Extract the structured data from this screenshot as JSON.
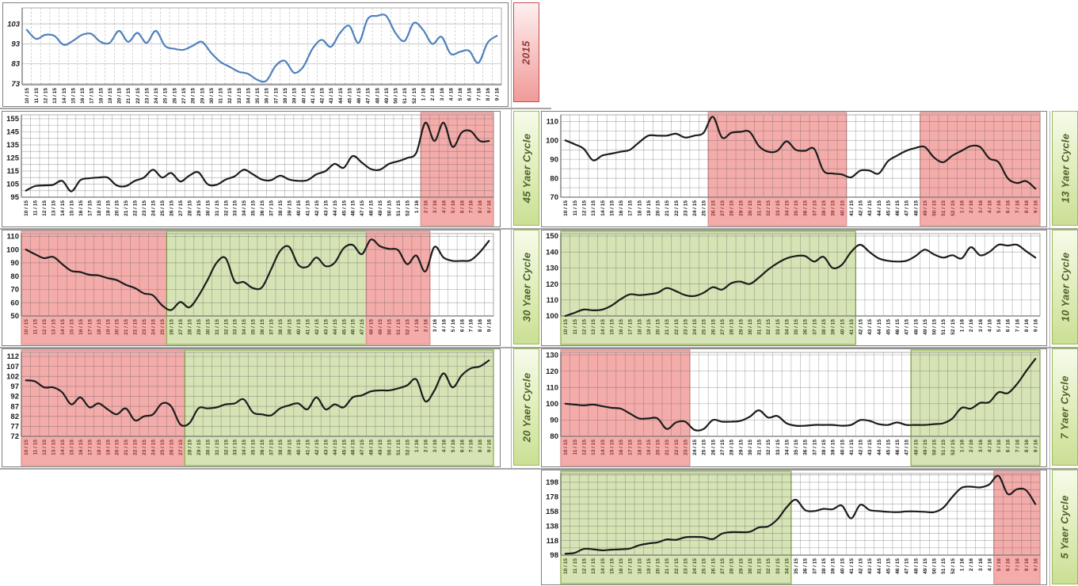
{
  "colors": {
    "band_red_fill": "#F4ACAA",
    "band_red_border": "#DB9694",
    "band_green_fill": "#D5E3B5",
    "band_green_border": "#95B356",
    "blue_line": "#4F81BD",
    "black_line": "#1c1c1c",
    "gridline": "#9a9a9a",
    "axis": "#777777",
    "xlab_plain": "#1a1a1a",
    "xlab_red": "#8A3533",
    "xlab_green": "#3F511F"
  },
  "x_labels": [
    "10 / 15",
    "11 / 15",
    "12 / 15",
    "13 / 15",
    "14 / 15",
    "15 / 15",
    "16 / 15",
    "17 / 15",
    "18 / 15",
    "19 / 15",
    "20 / 15",
    "21 / 15",
    "22 / 15",
    "23 / 15",
    "24 / 15",
    "25 / 15",
    "26 / 15",
    "27 / 15",
    "28 / 15",
    "29 / 15",
    "30 / 15",
    "31 / 15",
    "32 / 15",
    "33 / 15",
    "34 / 15",
    "35 / 15",
    "36 / 15",
    "37 / 15",
    "38 / 15",
    "39 / 15",
    "40 / 15",
    "41 / 15",
    "42 / 15",
    "43 / 15",
    "44 / 15",
    "45 / 15",
    "46 / 15",
    "47 / 15",
    "48 / 15",
    "49 / 15",
    "50 / 15",
    "51 / 15",
    "52 / 15",
    "1 / 16",
    "2 / 16",
    "3 / 16",
    "4 / 16",
    "5 / 16",
    "6 / 16",
    "7 / 16",
    "8 / 16",
    "9 / 16"
  ],
  "chart_data": [
    {
      "type": "line",
      "name": "2015",
      "tag_theme": "red",
      "line": "blue",
      "ylim": [
        72.5,
        111
      ],
      "yticks": [
        73,
        83,
        93,
        103
      ],
      "minor_step": null,
      "dashed_vgrid": true,
      "bands": [],
      "values": [
        100,
        95.5,
        97.5,
        97,
        92.5,
        94.5,
        97.5,
        98,
        94,
        93.5,
        99.5,
        94,
        98.5,
        93.5,
        99.5,
        92,
        90.5,
        90,
        92,
        94,
        88.5,
        84,
        81.5,
        79,
        78,
        75,
        74.5,
        82,
        84.5,
        78.5,
        81.5,
        90.5,
        95,
        91.5,
        98.5,
        102,
        93.5,
        105.5,
        107,
        107,
        98.5,
        94.5,
        103.5,
        100,
        93,
        96.5,
        88,
        89,
        89.5,
        83.5,
        93.5,
        97
      ]
    },
    {
      "type": "line",
      "name": "45 Yaer Cycle",
      "tag_theme": "green",
      "line": "black",
      "ylim": [
        95,
        158
      ],
      "yticks": [
        95,
        105,
        115,
        125,
        135,
        145,
        155
      ],
      "minor_step": 5,
      "dashed_vgrid": false,
      "bands": [
        {
          "from": 44,
          "to": 51,
          "kind": "red"
        }
      ],
      "values": [
        100,
        103.5,
        104,
        104.5,
        107.5,
        99.5,
        108,
        109.5,
        110,
        110,
        104,
        103.5,
        107.5,
        110,
        116,
        110,
        113.5,
        107,
        111.5,
        114,
        105,
        104.5,
        108.5,
        111,
        116,
        112.5,
        108.5,
        108,
        111.5,
        108.5,
        107.5,
        108,
        112.5,
        115,
        120.5,
        117.5,
        126.5,
        121.5,
        116.5,
        116,
        120.5,
        122.5,
        125,
        129,
        152,
        138,
        152,
        133.5,
        144.5,
        145.5,
        138,
        138
      ]
    },
    {
      "type": "line",
      "name": "13 Yaer Cycle",
      "tag_theme": "green",
      "line": "black",
      "ylim": [
        70,
        113.5
      ],
      "yticks": [
        70,
        80,
        90,
        100,
        110
      ],
      "minor_step": 5,
      "dashed_vgrid": false,
      "bands": [
        {
          "from": 16,
          "to": 30,
          "kind": "red"
        },
        {
          "from": 39,
          "to": 51,
          "kind": "red"
        }
      ],
      "values": [
        100,
        98,
        95.5,
        89.5,
        92,
        93,
        94,
        95,
        99,
        102.5,
        102.5,
        102.5,
        103.5,
        101.5,
        102.5,
        104,
        112.5,
        101.5,
        104,
        104.5,
        104.5,
        97,
        94,
        94.5,
        99.5,
        95,
        94.5,
        95.5,
        84,
        82.5,
        82,
        80.5,
        84,
        84,
        82.5,
        89,
        92,
        94.5,
        96,
        96.5,
        91,
        88.5,
        92,
        94.5,
        97,
        96.5,
        90.5,
        88.5,
        80,
        77.5,
        78.5,
        74.5
      ]
    },
    {
      "type": "line",
      "name": "30 Yaer Cycle",
      "tag_theme": "green",
      "line": "black",
      "ylim": [
        50,
        112
      ],
      "yticks": [
        50,
        60,
        70,
        80,
        90,
        100,
        110
      ],
      "minor_step": null,
      "dashed_vgrid": false,
      "bands": [
        {
          "from": 0,
          "to": 15,
          "kind": "red"
        },
        {
          "from": 16,
          "to": 37,
          "kind": "green"
        },
        {
          "from": 38,
          "to": 44,
          "kind": "red"
        }
      ],
      "values": [
        100,
        96.5,
        93.5,
        94.5,
        89,
        84,
        83,
        81,
        80.5,
        78.5,
        77,
        73.5,
        71,
        67,
        65.5,
        58,
        54.5,
        60.5,
        56.5,
        65,
        77,
        90,
        93.5,
        76,
        75.5,
        71,
        71.5,
        85,
        99,
        102,
        88.5,
        87,
        94,
        87.5,
        90,
        101,
        103.5,
        96.5,
        107.5,
        102.5,
        100.5,
        99.5,
        89,
        95.5,
        83.5,
        102,
        94,
        91.5,
        91.5,
        92,
        98,
        106.5
      ]
    },
    {
      "type": "line",
      "name": "10 Yaer Cycle",
      "tag_theme": "green",
      "line": "black",
      "ylim": [
        100,
        151.5
      ],
      "yticks": [
        100,
        110,
        120,
        130,
        140,
        150
      ],
      "minor_step": null,
      "dashed_vgrid": false,
      "bands": [
        {
          "from": 0,
          "to": 31,
          "kind": "green"
        }
      ],
      "values": [
        100,
        102,
        104,
        103.5,
        104,
        106.5,
        110.5,
        113.5,
        113,
        113.5,
        114.5,
        117.5,
        115.5,
        113,
        112.5,
        114.5,
        118,
        116.5,
        120.5,
        121.5,
        120,
        124,
        129,
        133,
        136,
        137.5,
        137.5,
        134,
        137,
        130,
        132,
        140,
        144.5,
        140,
        136,
        134.5,
        134,
        134.5,
        137.5,
        141.5,
        138.5,
        136.5,
        138,
        136,
        143,
        138,
        140,
        144.5,
        144,
        144.5,
        140.5,
        136.5
      ]
    },
    {
      "type": "line",
      "name": "20 Yaer Cycle",
      "tag_theme": "green",
      "line": "black",
      "ylim": [
        72,
        114
      ],
      "yticks": [
        72,
        77,
        82,
        87,
        92,
        97,
        102,
        107,
        112
      ],
      "minor_step": null,
      "dashed_vgrid": false,
      "bands": [
        {
          "from": 0,
          "to": 17,
          "kind": "red"
        },
        {
          "from": 18,
          "to": 51,
          "kind": "green"
        }
      ],
      "values": [
        100,
        99.5,
        96.5,
        96.5,
        94,
        88,
        91.5,
        86.5,
        88.5,
        85.5,
        83,
        86,
        80,
        82,
        83,
        88.5,
        87,
        78,
        78.5,
        86,
        86,
        86.5,
        88,
        88.5,
        90.5,
        84,
        83,
        82.5,
        86,
        87.5,
        88.5,
        85.5,
        91.5,
        85.5,
        88,
        86.5,
        91.5,
        92.5,
        94.5,
        95,
        95,
        96,
        97.5,
        100.5,
        89.5,
        95,
        103.5,
        96.5,
        102.5,
        106,
        107,
        110
      ]
    },
    {
      "type": "line",
      "name": "7 Yaer Cycle",
      "tag_theme": "green",
      "line": "black",
      "ylim": [
        80,
        131.5
      ],
      "yticks": [
        80,
        90,
        100,
        110,
        120,
        130
      ],
      "minor_step": null,
      "dashed_vgrid": false,
      "bands": [
        {
          "from": 0,
          "to": 13,
          "kind": "red"
        },
        {
          "from": 38,
          "to": 51,
          "kind": "green"
        }
      ],
      "values": [
        100,
        99.5,
        99,
        99.5,
        98.5,
        97.5,
        97,
        94,
        91,
        91,
        91,
        84.5,
        88.5,
        89,
        84,
        84.5,
        90,
        89,
        89,
        89.5,
        92,
        96,
        91.5,
        92.5,
        88,
        86.5,
        86.5,
        87,
        87,
        87,
        86.5,
        87,
        90,
        89.5,
        87.5,
        87,
        88.5,
        87,
        87,
        87,
        87.5,
        88,
        91,
        97.5,
        97,
        100.5,
        101,
        107,
        106.5,
        112,
        120,
        127.5
      ]
    },
    {
      "type": "line",
      "name": "5 Yaer Cycle",
      "tag_theme": "green",
      "line": "black",
      "ylim": [
        98,
        210
      ],
      "yticks": [
        98,
        118,
        138,
        158,
        178,
        198
      ],
      "minor_step": 10,
      "dashed_vgrid": false,
      "bands": [
        {
          "from": 0,
          "to": 24,
          "kind": "green"
        },
        {
          "from": 47,
          "to": 51,
          "kind": "red"
        }
      ],
      "values": [
        100,
        101,
        106.5,
        106,
        104.5,
        105.5,
        106,
        107,
        111.5,
        114,
        115.5,
        119.5,
        119,
        122.5,
        123,
        122.5,
        120,
        127.5,
        129.5,
        129.5,
        130,
        136,
        137.5,
        147,
        163.5,
        174,
        160,
        158.5,
        161.5,
        161,
        166,
        148.5,
        167,
        160,
        158.5,
        157.5,
        157,
        158,
        158,
        157.5,
        157,
        163,
        178,
        190.5,
        192,
        191,
        195,
        207,
        182,
        188.5,
        187,
        168
      ]
    }
  ]
}
